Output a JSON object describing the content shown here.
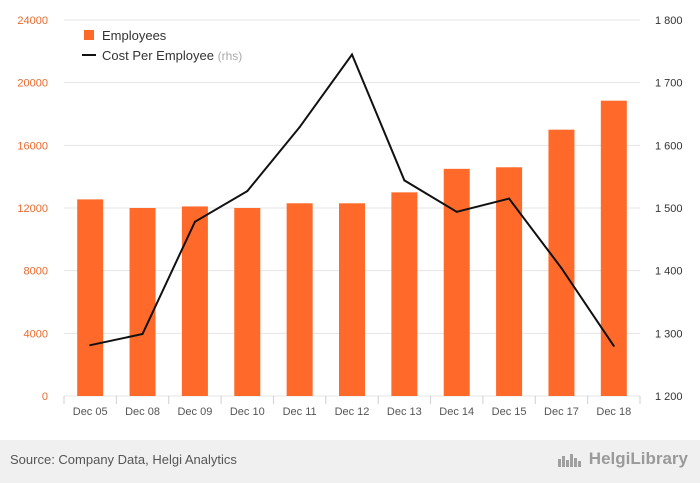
{
  "chart_data": {
    "type": "bar",
    "categories": [
      "Dec 05",
      "Dec 08",
      "Dec 09",
      "Dec 10",
      "Dec 11",
      "Dec 12",
      "Dec 13",
      "Dec 14",
      "Dec 15",
      "Dec 17",
      "Dec 18"
    ],
    "series": [
      {
        "name": "Employees",
        "type": "bar",
        "axis": "left",
        "color": "#ff6a2a",
        "values": [
          12550,
          12000,
          12100,
          12000,
          12300,
          12300,
          13000,
          14500,
          14600,
          17000,
          18850
        ]
      },
      {
        "name": "Cost Per Employee",
        "legend_suffix": "(rhs)",
        "type": "line",
        "axis": "right",
        "color": "#111111",
        "values": [
          1281,
          1299,
          1478,
          1527,
          1629,
          1745,
          1544,
          1494,
          1515,
          1404,
          1280
        ]
      }
    ],
    "y_left": {
      "ticks": [
        "0",
        "4000",
        "8000",
        "12000",
        "16000",
        "20000",
        "24000"
      ],
      "lim": [
        0,
        24000
      ],
      "color": "#e86a2e"
    },
    "y_right": {
      "ticks": [
        "1 200",
        "1 300",
        "1 400",
        "1 500",
        "1 600",
        "1 700",
        "1 800"
      ],
      "lim": [
        1200,
        1800
      ]
    },
    "grid": true,
    "legend_position": "top-left"
  },
  "footer": {
    "source": "Source: Company Data, Helgi Analytics",
    "brand": "HelgiLibrary"
  }
}
